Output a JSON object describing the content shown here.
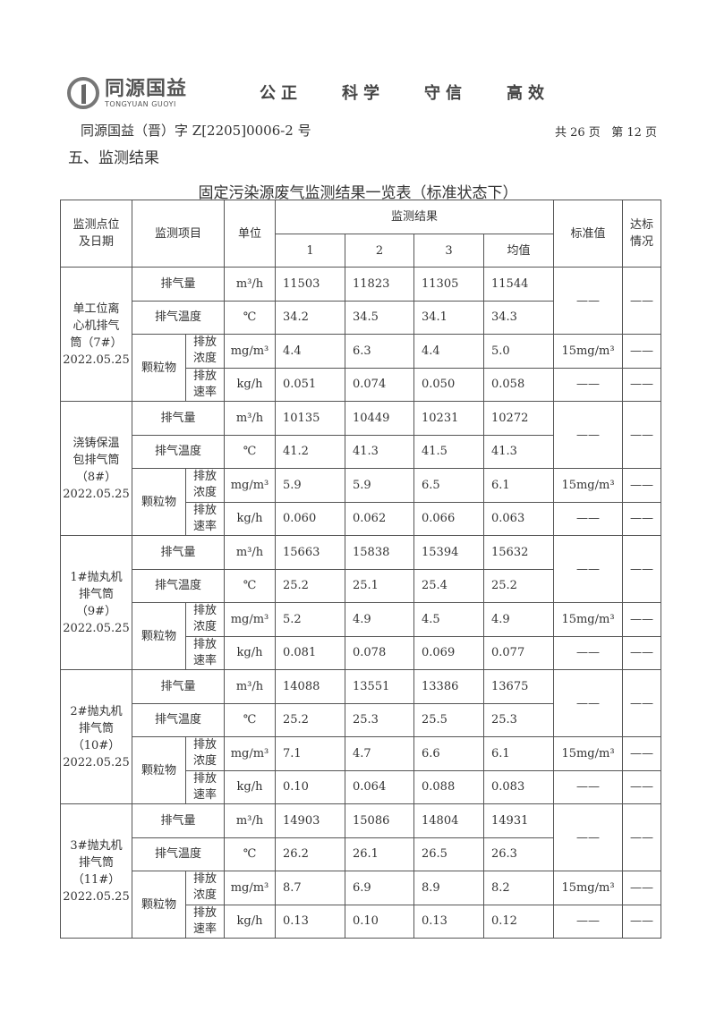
{
  "header": {
    "logo_cn": "同源国益",
    "logo_en": "TONGYUAN GUOYI",
    "slogans": [
      "公正",
      "科学",
      "守信",
      "高效"
    ],
    "doc_number": "同源国益（晋）字 Z[2205]0006-2 号",
    "page_info": "共 26 页   第 12 页"
  },
  "section_title": "五、监测结果",
  "table": {
    "title": "固定污染源废气监测结果一览表（标准状态下）",
    "headers": {
      "location": "监测点位\n及日期",
      "item": "监测项目",
      "unit": "单位",
      "results": "监测结果",
      "cols": [
        "1",
        "2",
        "3",
        "均值"
      ],
      "standard": "标准值",
      "compliance": "达标\n情况"
    },
    "groups": [
      {
        "location": "单工位离\n心机排气\n筒（7#）\n2022.05.25",
        "rows": [
          {
            "item": "排气量",
            "unit": "m³/h",
            "values": [
              "11503",
              "11823",
              "11305",
              "11544"
            ],
            "standard": "——",
            "compliance": "——"
          },
          {
            "item": "排气温度",
            "unit": "℃",
            "values": [
              "34.2",
              "34.5",
              "34.1",
              "34.3"
            ]
          },
          {
            "item": "颗粒物",
            "sub": "排放\n浓度",
            "unit": "mg/m³",
            "values": [
              "4.4",
              "6.3",
              "4.4",
              "5.0"
            ],
            "standard": "15mg/m³",
            "compliance": "——"
          },
          {
            "sub": "排放\n速率",
            "unit": "kg/h",
            "values": [
              "0.051",
              "0.074",
              "0.050",
              "0.058"
            ],
            "standard": "——",
            "compliance": "——"
          }
        ]
      },
      {
        "location": "浇铸保温\n包排气筒\n（8#）\n2022.05.25",
        "rows": [
          {
            "item": "排气量",
            "unit": "m³/h",
            "values": [
              "10135",
              "10449",
              "10231",
              "10272"
            ],
            "standard": "——",
            "compliance": "——"
          },
          {
            "item": "排气温度",
            "unit": "℃",
            "values": [
              "41.2",
              "41.3",
              "41.5",
              "41.3"
            ]
          },
          {
            "item": "颗粒物",
            "sub": "排放\n浓度",
            "unit": "mg/m³",
            "values": [
              "5.9",
              "5.9",
              "6.5",
              "6.1"
            ],
            "standard": "15mg/m³",
            "compliance": "——"
          },
          {
            "sub": "排放\n速率",
            "unit": "kg/h",
            "values": [
              "0.060",
              "0.062",
              "0.066",
              "0.063"
            ],
            "standard": "——",
            "compliance": "——"
          }
        ]
      },
      {
        "location": "1#抛丸机\n排气筒\n（9#）\n2022.05.25",
        "rows": [
          {
            "item": "排气量",
            "unit": "m³/h",
            "values": [
              "15663",
              "15838",
              "15394",
              "15632"
            ],
            "standard": "——",
            "compliance": "——"
          },
          {
            "item": "排气温度",
            "unit": "℃",
            "values": [
              "25.2",
              "25.1",
              "25.4",
              "25.2"
            ]
          },
          {
            "item": "颗粒物",
            "sub": "排放\n浓度",
            "unit": "mg/m³",
            "values": [
              "5.2",
              "4.9",
              "4.5",
              "4.9"
            ],
            "standard": "15mg/m³",
            "compliance": "——"
          },
          {
            "sub": "排放\n速率",
            "unit": "kg/h",
            "values": [
              "0.081",
              "0.078",
              "0.069",
              "0.077"
            ],
            "standard": "——",
            "compliance": "——"
          }
        ]
      },
      {
        "location": "2#抛丸机\n排气筒\n（10#）\n2022.05.25",
        "rows": [
          {
            "item": "排气量",
            "unit": "m³/h",
            "values": [
              "14088",
              "13551",
              "13386",
              "13675"
            ],
            "standard": "——",
            "compliance": "——"
          },
          {
            "item": "排气温度",
            "unit": "℃",
            "values": [
              "25.2",
              "25.3",
              "25.5",
              "25.3"
            ]
          },
          {
            "item": "颗粒物",
            "sub": "排放\n浓度",
            "unit": "mg/m³",
            "values": [
              "7.1",
              "4.7",
              "6.6",
              "6.1"
            ],
            "standard": "15mg/m³",
            "compliance": "——"
          },
          {
            "sub": "排放\n速率",
            "unit": "kg/h",
            "values": [
              "0.10",
              "0.064",
              "0.088",
              "0.083"
            ],
            "standard": "——",
            "compliance": "——"
          }
        ]
      },
      {
        "location": "3#抛丸机\n排气筒\n（11#）\n2022.05.25",
        "rows": [
          {
            "item": "排气量",
            "unit": "m³/h",
            "values": [
              "14903",
              "15086",
              "14804",
              "14931"
            ],
            "standard": "——",
            "compliance": "——"
          },
          {
            "item": "排气温度",
            "unit": "℃",
            "values": [
              "26.2",
              "26.1",
              "26.5",
              "26.3"
            ]
          },
          {
            "item": "颗粒物",
            "sub": "排放\n浓度",
            "unit": "mg/m³",
            "values": [
              "8.7",
              "6.9",
              "8.9",
              "8.2"
            ],
            "standard": "15mg/m³",
            "compliance": "——"
          },
          {
            "sub": "排放\n速率",
            "unit": "kg/h",
            "values": [
              "0.13",
              "0.10",
              "0.13",
              "0.12"
            ],
            "standard": "——",
            "compliance": "——"
          }
        ]
      }
    ]
  }
}
